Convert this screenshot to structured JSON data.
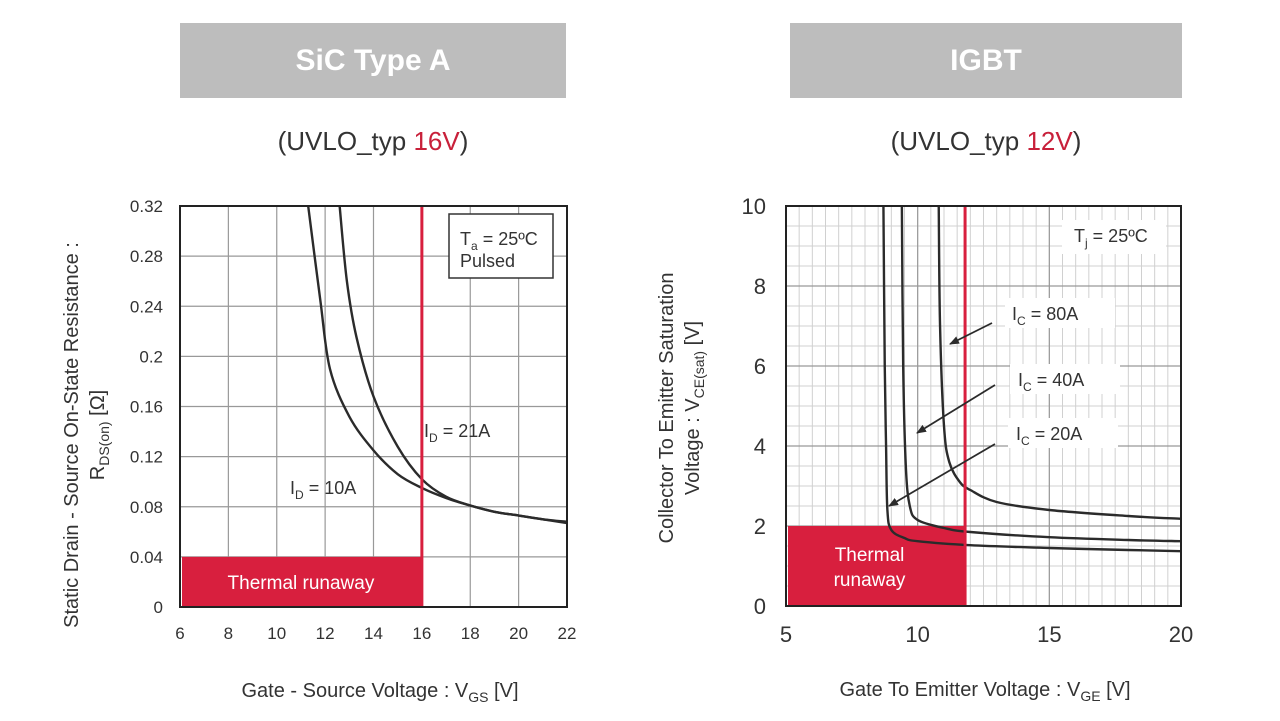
{
  "colors": {
    "accent": "#d81f3e",
    "header_bg": "#bdbdbd",
    "grid": "#999999",
    "curve": "#2b2b2b"
  },
  "panels": [
    {
      "title": "SiC Type A",
      "uvlo_prefix": "(UVLO_typ ",
      "uvlo_value": "16V",
      "uvlo_suffix": ")"
    },
    {
      "title": "IGBT",
      "uvlo_prefix": "(UVLO_typ ",
      "uvlo_value": "12V",
      "uvlo_suffix": ")"
    }
  ],
  "chart_data": [
    {
      "type": "line",
      "xlabel": "Gate - Source Voltage : V",
      "xlabel_sub": "GS",
      "xlabel_suffix": " [V]",
      "ylabel_line1": "Static Drain - Source On-State Resistance :",
      "ylabel_line2_main": "R",
      "ylabel_line2_sub": "DS(on)",
      "ylabel_line2_suffix": " [Ω]",
      "xlim": [
        6,
        22
      ],
      "ylim": [
        0,
        0.32
      ],
      "x_ticks": [
        6,
        8,
        10,
        12,
        14,
        16,
        18,
        20,
        22
      ],
      "x_tick_labels": [
        "6",
        "8",
        "10",
        "12",
        "14",
        "16",
        "18",
        "20",
        "22"
      ],
      "y_ticks": [
        0,
        0.04,
        0.08,
        0.12,
        0.16,
        0.2,
        0.24,
        0.28,
        0.32
      ],
      "y_tick_labels": [
        "0",
        "0.04",
        "0.08",
        "0.12",
        "0.16",
        "0.2",
        "0.24",
        "0.28",
        "0.32"
      ],
      "grid": true,
      "legend_box": {
        "line1_main": "T",
        "line1_sub": "a",
        "line1_suffix": " = 25ºC",
        "line2": "Pulsed",
        "placement": "top-right"
      },
      "series": [
        {
          "name": "I_D = 10A",
          "label_main": "I",
          "label_sub": "D",
          "label_suffix": " = 10A",
          "points": [
            [
              11.3,
              0.32
            ],
            [
              11.8,
              0.245
            ],
            [
              12.2,
              0.19
            ],
            [
              13,
              0.152
            ],
            [
              14,
              0.125
            ],
            [
              15,
              0.106
            ],
            [
              16,
              0.095
            ],
            [
              17,
              0.087
            ],
            [
              18,
              0.081
            ],
            [
              19,
              0.076
            ],
            [
              20,
              0.073
            ],
            [
              21,
              0.07
            ],
            [
              22,
              0.068
            ]
          ]
        },
        {
          "name": "I_D = 21A",
          "label_main": "I",
          "label_sub": "D",
          "label_suffix": " = 21A",
          "points": [
            [
              12.6,
              0.32
            ],
            [
              12.9,
              0.26
            ],
            [
              13.3,
              0.215
            ],
            [
              14,
              0.168
            ],
            [
              15,
              0.128
            ],
            [
              16,
              0.102
            ],
            [
              17,
              0.088
            ],
            [
              18,
              0.081
            ],
            [
              19,
              0.076
            ],
            [
              20,
              0.073
            ],
            [
              21,
              0.07
            ],
            [
              22,
              0.067
            ]
          ]
        }
      ],
      "threshold_x": 16,
      "thermal_region": {
        "label": "Thermal runaway",
        "x": [
          6,
          16
        ],
        "y": [
          0,
          0.04
        ]
      }
    },
    {
      "type": "line",
      "xlabel": "Gate To Emitter Voltage : V",
      "xlabel_sub": "GE",
      "xlabel_suffix": " [V]",
      "ylabel_line1": "Collector To Emitter Saturation",
      "ylabel_line2_main": "Voltage : V",
      "ylabel_line2_sub": "CE(sat)",
      "ylabel_line2_suffix": " [V]",
      "xlim": [
        5,
        20
      ],
      "ylim": [
        0,
        10
      ],
      "x_ticks": [
        5,
        10,
        15,
        20
      ],
      "x_tick_labels": [
        "5",
        "10",
        "15",
        "20"
      ],
      "y_ticks": [
        0,
        2,
        4,
        6,
        8,
        10
      ],
      "y_tick_labels": [
        "0",
        "2",
        "4",
        "6",
        "8",
        "10"
      ],
      "grid": true,
      "legend_box": {
        "line1_main": "T",
        "line1_sub": "j",
        "line1_suffix": " = 25ºC",
        "placement": "top-right"
      },
      "series": [
        {
          "name": "I_C = 20A",
          "label_main": "I",
          "label_sub": "C",
          "label_suffix": " = 20A",
          "points": [
            [
              8.7,
              10
            ],
            [
              8.75,
              6
            ],
            [
              8.8,
              4
            ],
            [
              8.85,
              2.4
            ],
            [
              9.0,
              1.9
            ],
            [
              9.5,
              1.7
            ],
            [
              10,
              1.62
            ],
            [
              12,
              1.52
            ],
            [
              15,
              1.45
            ],
            [
              18,
              1.4
            ],
            [
              20,
              1.37
            ]
          ]
        },
        {
          "name": "I_C = 40A",
          "label_main": "I",
          "label_sub": "C",
          "label_suffix": " = 40A",
          "points": [
            [
              9.4,
              10
            ],
            [
              9.45,
              6
            ],
            [
              9.55,
              3.5
            ],
            [
              9.7,
              2.5
            ],
            [
              10,
              2.15
            ],
            [
              11,
              1.95
            ],
            [
              12,
              1.85
            ],
            [
              15,
              1.72
            ],
            [
              18,
              1.65
            ],
            [
              20,
              1.62
            ]
          ]
        },
        {
          "name": "I_C = 80A",
          "label_main": "I",
          "label_sub": "C",
          "label_suffix": " = 80A",
          "points": [
            [
              10.8,
              10
            ],
            [
              10.85,
              7
            ],
            [
              11,
              4.5
            ],
            [
              11.2,
              3.6
            ],
            [
              11.6,
              3.1
            ],
            [
              12,
              2.9
            ],
            [
              13,
              2.6
            ],
            [
              15,
              2.4
            ],
            [
              18,
              2.25
            ],
            [
              20,
              2.18
            ]
          ]
        }
      ],
      "threshold_x": 11.8,
      "thermal_region": {
        "label_line1": "Thermal",
        "label_line2": "runaway",
        "x": [
          5,
          11.8
        ],
        "y": [
          0,
          2
        ]
      }
    }
  ]
}
